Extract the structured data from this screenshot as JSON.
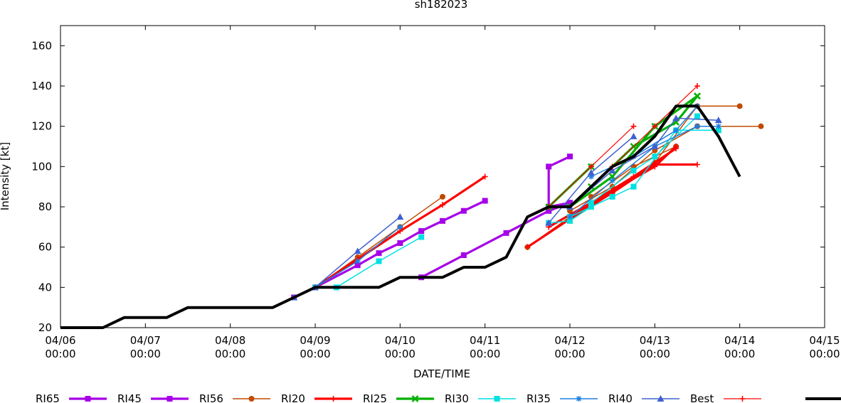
{
  "chart_data": {
    "type": "line",
    "title": "sh182023",
    "xlabel": "DATE/TIME",
    "ylabel": "Intensity [kt]",
    "ylim": [
      20,
      170
    ],
    "y_ticks": [
      20,
      40,
      60,
      80,
      100,
      120,
      140,
      160
    ],
    "xlim": [
      "04/06 00:00",
      "04/15 00:00"
    ],
    "x_ticks": [
      {
        "date": "04/06",
        "time": "00:00"
      },
      {
        "date": "04/07",
        "time": "00:00"
      },
      {
        "date": "04/08",
        "time": "00:00"
      },
      {
        "date": "04/09",
        "time": "00:00"
      },
      {
        "date": "04/10",
        "time": "00:00"
      },
      {
        "date": "04/11",
        "time": "00:00"
      },
      {
        "date": "04/12",
        "time": "00:00"
      },
      {
        "date": "04/13",
        "time": "00:00"
      },
      {
        "date": "04/14",
        "time": "00:00"
      },
      {
        "date": "04/15",
        "time": "00:00"
      }
    ],
    "grid": false,
    "legend_position": "bottom",
    "series": [
      {
        "name": "RI65",
        "color": "#a600e8",
        "marker": "square",
        "width": "thick",
        "tracks": [
          [
            [
              "04/08 18:00",
              35
            ],
            [
              "04/09 00:00",
              40
            ],
            [
              "04/09 12:00",
              51
            ],
            [
              "04/09 18:00",
              57
            ],
            [
              "04/10 00:00",
              62
            ],
            [
              "04/10 06:00",
              68
            ],
            [
              "04/10 12:00",
              73
            ],
            [
              "04/10 18:00",
              78
            ],
            [
              "04/11 00:00",
              83
            ]
          ],
          [
            [
              "04/10 06:00",
              45
            ],
            [
              "04/10 18:00",
              56
            ],
            [
              "04/11 06:00",
              67
            ],
            [
              "04/11 18:00",
              78
            ],
            [
              "04/12 00:00",
              82
            ]
          ],
          [
            [
              "04/11 18:00",
              80
            ],
            [
              "04/12 00:00",
              82
            ]
          ]
        ]
      },
      {
        "name": "RI45",
        "color": "#a600e8",
        "marker": "square",
        "width": "thick",
        "tracks": [
          [
            [
              "04/11 18:00",
              78
            ],
            [
              "04/11 18:00",
              100
            ],
            [
              "04/12 00:00",
              105
            ]
          ]
        ]
      },
      {
        "name": "RI56",
        "color": "#c04a00",
        "marker": "circle",
        "width": "normal",
        "tracks": [
          [
            [
              "04/09 00:00",
              40
            ],
            [
              "04/09 12:00",
              55
            ],
            [
              "04/10 00:00",
              70
            ],
            [
              "04/10 12:00",
              85
            ]
          ],
          [
            [
              "04/11 12:00",
              60
            ],
            [
              "04/12 00:00",
              75
            ],
            [
              "04/12 12:00",
              87
            ],
            [
              "04/13 00:00",
              102
            ],
            [
              "04/13 12:00",
              130
            ],
            [
              "04/14 00:00",
              130
            ]
          ],
          [
            [
              "04/12 00:00",
              78
            ],
            [
              "04/12 12:00",
              90
            ],
            [
              "04/13 00:00",
              108
            ],
            [
              "04/13 12:00",
              120
            ],
            [
              "04/14 06:00",
              120
            ]
          ],
          [
            [
              "04/12 06:00",
              85
            ],
            [
              "04/12 18:00",
              100
            ],
            [
              "04/13 06:00",
              110
            ]
          ]
        ]
      },
      {
        "name": "RI20",
        "color": "#ff0000",
        "marker": "plus",
        "width": "thick",
        "tracks": [
          [
            [
              "04/09 00:00",
              40
            ],
            [
              "04/09 12:00",
              54
            ],
            [
              "04/10 00:00",
              68
            ],
            [
              "04/10 12:00",
              81
            ],
            [
              "04/11 00:00",
              95
            ]
          ],
          [
            [
              "04/11 12:00",
              60
            ],
            [
              "04/12 00:00",
              74
            ],
            [
              "04/12 12:00",
              87
            ],
            [
              "04/13 00:00",
              101
            ],
            [
              "04/13 12:00",
              101
            ]
          ],
          [
            [
              "04/12 00:00",
              75
            ],
            [
              "04/12 12:00",
              88
            ],
            [
              "04/13 00:00",
              100
            ],
            [
              "04/13 06:00",
              110
            ]
          ],
          [
            [
              "04/11 18:00",
              70
            ],
            [
              "04/12 06:00",
              82
            ],
            [
              "04/12 18:00",
              95
            ],
            [
              "04/13 06:00",
              109
            ]
          ]
        ]
      },
      {
        "name": "RI25",
        "color": "#00b000",
        "marker": "x",
        "width": "thick",
        "tracks": [
          [
            [
              "04/11 18:00",
              80
            ],
            [
              "04/12 06:00",
              100
            ]
          ],
          [
            [
              "04/12 00:00",
              80
            ],
            [
              "04/12 12:00",
              95
            ],
            [
              "04/13 00:00",
              120
            ],
            [
              "04/13 12:00",
              135
            ]
          ],
          [
            [
              "04/12 06:00",
              90
            ],
            [
              "04/12 18:00",
              110
            ],
            [
              "04/13 06:00",
              122
            ],
            [
              "04/13 12:00",
              135
            ]
          ]
        ]
      },
      {
        "name": "RI30",
        "color": "#00e0e0",
        "marker": "square",
        "width": "normal",
        "tracks": [
          [
            [
              "04/09 00:00",
              40
            ],
            [
              "04/09 06:00",
              40
            ],
            [
              "04/09 18:00",
              53
            ],
            [
              "04/10 06:00",
              65
            ]
          ],
          [
            [
              "04/11 18:00",
              72
            ],
            [
              "04/12 00:00",
              73
            ],
            [
              "04/12 06:00",
              80
            ],
            [
              "04/12 12:00",
              85
            ]
          ],
          [
            [
              "04/12 00:00",
              75
            ],
            [
              "04/12 18:00",
              90
            ],
            [
              "04/13 06:00",
              118
            ],
            [
              "04/13 18:00",
              118
            ]
          ],
          [
            [
              "04/12 06:00",
              82
            ],
            [
              "04/12 18:00",
              98
            ],
            [
              "04/13 00:00",
              105
            ],
            [
              "04/13 12:00",
              125
            ]
          ]
        ]
      },
      {
        "name": "RI35",
        "color": "#1e7fe0",
        "marker": "star",
        "width": "normal",
        "tracks": [
          [
            [
              "04/09 00:00",
              40
            ],
            [
              "04/09 12:00",
              53
            ],
            [
              "04/10 00:00",
              70
            ]
          ],
          [
            [
              "04/12 00:00",
              75
            ],
            [
              "04/12 12:00",
              93
            ],
            [
              "04/13 00:00",
              110
            ],
            [
              "04/13 12:00",
              120
            ],
            [
              "04/13 18:00",
              120
            ]
          ],
          [
            [
              "04/12 06:00",
              95
            ],
            [
              "04/12 18:00",
              105
            ],
            [
              "04/13 06:00",
              118
            ],
            [
              "04/13 12:00",
              130
            ]
          ]
        ]
      },
      {
        "name": "RI40",
        "color": "#4060d0",
        "marker": "triangle",
        "width": "normal",
        "tracks": [
          [
            [
              "04/08 18:00",
              35
            ],
            [
              "04/09 00:00",
              40
            ],
            [
              "04/09 12:00",
              58
            ],
            [
              "04/10 00:00",
              75
            ]
          ],
          [
            [
              "04/11 18:00",
              72
            ],
            [
              "04/12 06:00",
              97
            ],
            [
              "04/12 18:00",
              115
            ]
          ],
          [
            [
              "04/12 00:00",
              80
            ],
            [
              "04/12 12:00",
              98
            ],
            [
              "04/13 00:00",
              110
            ],
            [
              "04/13 06:00",
              124
            ],
            [
              "04/13 18:00",
              123
            ]
          ]
        ]
      },
      {
        "name": "Best",
        "color": "#ff0000",
        "marker": "plus",
        "width": "thin",
        "tracks": [
          [
            [
              "04/11 18:00",
              80
            ],
            [
              "04/12 06:00",
              100
            ],
            [
              "04/12 18:00",
              120
            ]
          ],
          [
            [
              "04/12 12:00",
              100
            ],
            [
              "04/13 00:00",
              120
            ],
            [
              "04/13 12:00",
              140
            ]
          ]
        ]
      },
      {
        "name": "",
        "color": "#000000",
        "marker": "none",
        "width": "heavy",
        "legend_line_only": true,
        "tracks": [
          [
            [
              "04/06 00:00",
              20
            ],
            [
              "04/06 12:00",
              20
            ],
            [
              "04/06 18:00",
              25
            ],
            [
              "04/07 00:00",
              25
            ],
            [
              "04/07 06:00",
              25
            ],
            [
              "04/07 12:00",
              30
            ],
            [
              "04/08 00:00",
              30
            ],
            [
              "04/08 12:00",
              30
            ],
            [
              "04/08 18:00",
              35
            ],
            [
              "04/09 00:00",
              40
            ],
            [
              "04/09 12:00",
              40
            ],
            [
              "04/09 18:00",
              40
            ],
            [
              "04/10 00:00",
              45
            ],
            [
              "04/10 12:00",
              45
            ],
            [
              "04/10 18:00",
              50
            ],
            [
              "04/11 00:00",
              50
            ],
            [
              "04/11 06:00",
              55
            ],
            [
              "04/11 12:00",
              75
            ],
            [
              "04/11 18:00",
              80
            ],
            [
              "04/12 00:00",
              80
            ],
            [
              "04/12 06:00",
              90
            ],
            [
              "04/12 12:00",
              100
            ],
            [
              "04/12 18:00",
              105
            ],
            [
              "04/13 00:00",
              115
            ],
            [
              "04/13 06:00",
              130
            ],
            [
              "04/13 12:00",
              130
            ],
            [
              "04/13 18:00",
              115
            ],
            [
              "04/14 00:00",
              95
            ]
          ]
        ]
      }
    ]
  }
}
